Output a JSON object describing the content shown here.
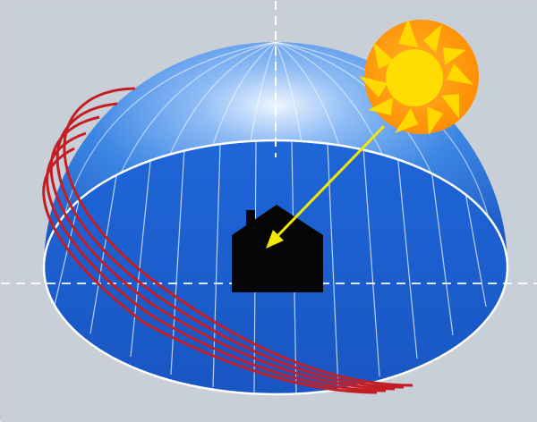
{
  "diagram": {
    "colors": {
      "background": "#c9cfd6",
      "dome_light": "#e9f2ff",
      "dome_mid": "#4b8fe6",
      "dome_dark": "#1e5fc9",
      "base_plane": "#1c63d6",
      "grid_line": "#ffffff",
      "sun_rays": "#ffd600",
      "sun_core": "#ff9d0a",
      "sun_path": "#c8232a",
      "house": "#050505",
      "arrow": "#f2e800"
    },
    "icons": [
      "sun-icon",
      "house-icon"
    ]
  }
}
